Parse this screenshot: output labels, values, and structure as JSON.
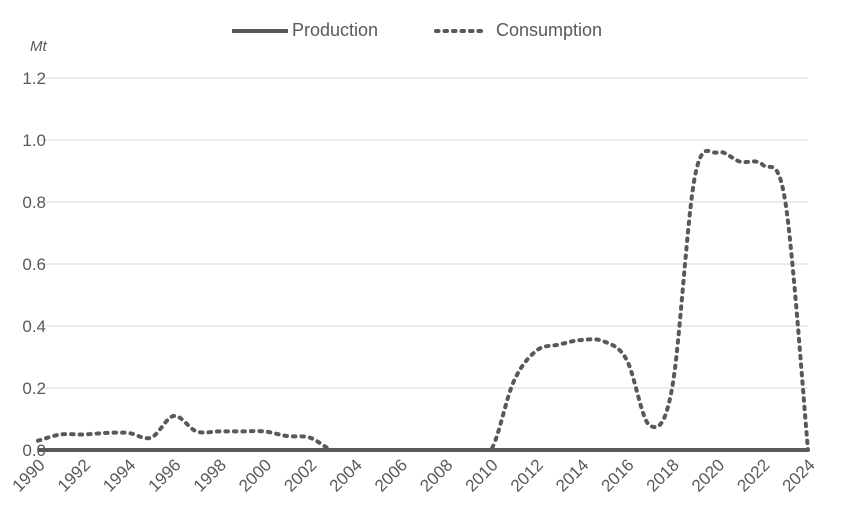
{
  "chart_data": {
    "type": "line",
    "unit_label": "Mt",
    "x": [
      1990,
      1991,
      1992,
      1993,
      1994,
      1995,
      1996,
      1997,
      1998,
      1999,
      2000,
      2001,
      2002,
      2003,
      2004,
      2005,
      2006,
      2007,
      2008,
      2009,
      2010,
      2011,
      2012,
      2013,
      2014,
      2015,
      2016,
      2017,
      2018,
      2019,
      2020,
      2021,
      2022,
      2023,
      2024
    ],
    "x_ticks": [
      "1990",
      "1992",
      "1994",
      "1996",
      "1998",
      "2000",
      "2002",
      "2004",
      "2006",
      "2008",
      "2010",
      "2012",
      "2014",
      "2016",
      "2018",
      "2020",
      "2022",
      "2024"
    ],
    "y_ticks": [
      "0.0",
      "0.2",
      "0.4",
      "0.6",
      "0.8",
      "1.0",
      "1.2"
    ],
    "ylim": [
      0,
      1.2
    ],
    "grid": true,
    "legend_position": "top-center",
    "series": [
      {
        "name": "Production",
        "style": "solid",
        "color": "#595959",
        "values": [
          0,
          0,
          0,
          0,
          0,
          0,
          0,
          0,
          0,
          0,
          0,
          0,
          0,
          0,
          0,
          0,
          0,
          0,
          0,
          0,
          0,
          0,
          0,
          0,
          0,
          0,
          0,
          0,
          0,
          0,
          0,
          0,
          0,
          0,
          0
        ]
      },
      {
        "name": "Consumption",
        "style": "dotted",
        "color": "#595959",
        "values": [
          0.03,
          0.05,
          0.05,
          0.055,
          0.055,
          0.04,
          0.11,
          0.06,
          0.06,
          0.06,
          0.06,
          0.045,
          0.04,
          0,
          0,
          0,
          0,
          0,
          0,
          0,
          0,
          0.22,
          0.32,
          0.34,
          0.355,
          0.35,
          0.29,
          0.08,
          0.2,
          0.88,
          0.96,
          0.93,
          0.92,
          0.8,
          0
        ]
      }
    ]
  }
}
